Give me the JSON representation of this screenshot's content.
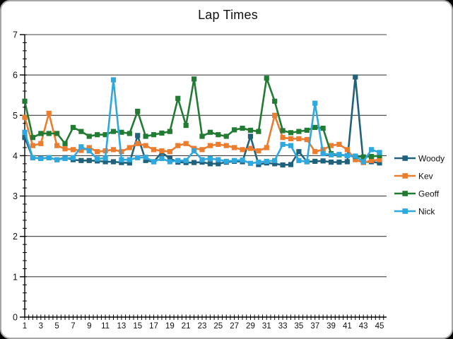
{
  "chart_data": {
    "type": "line",
    "title": "Lap Times",
    "xlabel": "",
    "ylabel": "",
    "xlim": [
      1,
      45
    ],
    "ylim": [
      0,
      7
    ],
    "grid": "horizontal-major-on",
    "legend_position": "right",
    "x": [
      1,
      2,
      3,
      4,
      5,
      6,
      7,
      8,
      9,
      10,
      11,
      12,
      13,
      14,
      15,
      16,
      17,
      18,
      19,
      20,
      21,
      22,
      23,
      24,
      25,
      26,
      27,
      28,
      29,
      30,
      31,
      32,
      33,
      34,
      35,
      36,
      37,
      38,
      39,
      40,
      41,
      42,
      43,
      44,
      45
    ],
    "x_tick_labels": [
      "1",
      "3",
      "5",
      "7",
      "9",
      "11",
      "13",
      "15",
      "17",
      "19",
      "21",
      "23",
      "25",
      "27",
      "29",
      "31",
      "33",
      "35",
      "37",
      "39",
      "41",
      "43",
      "45"
    ],
    "y_tick_labels": [
      "0",
      "1",
      "2",
      "3",
      "4",
      "5",
      "6",
      "7"
    ],
    "series": [
      {
        "name": "Woody",
        "color": "#20627C",
        "values": [
          4.45,
          3.95,
          3.93,
          3.95,
          3.9,
          3.95,
          3.9,
          3.88,
          3.88,
          3.87,
          3.85,
          3.85,
          3.83,
          3.82,
          4.5,
          3.88,
          3.85,
          4.08,
          3.93,
          3.84,
          3.83,
          3.83,
          3.84,
          3.8,
          3.8,
          3.84,
          3.86,
          3.85,
          4.48,
          3.78,
          3.82,
          3.8,
          3.77,
          3.78,
          4.1,
          3.85,
          3.86,
          3.87,
          3.84,
          3.84,
          3.85,
          5.95,
          3.84,
          3.85,
          3.82
        ]
      },
      {
        "name": "Kev",
        "color": "#EC7C2E",
        "values": [
          4.95,
          4.25,
          4.3,
          5.05,
          4.25,
          4.17,
          4.15,
          4.13,
          4.2,
          4.1,
          4.12,
          4.15,
          4.1,
          4.2,
          4.3,
          4.25,
          4.15,
          4.12,
          4.1,
          4.25,
          4.3,
          4.18,
          4.15,
          4.25,
          4.28,
          4.25,
          4.2,
          4.15,
          4.18,
          4.12,
          4.2,
          5.0,
          4.45,
          4.42,
          4.42,
          4.4,
          4.1,
          4.15,
          4.25,
          4.28,
          4.15,
          3.9,
          3.83,
          3.88,
          3.9
        ]
      },
      {
        "name": "Geoff",
        "color": "#217B32",
        "values": [
          5.35,
          4.45,
          4.55,
          4.55,
          4.55,
          4.3,
          4.7,
          4.6,
          4.48,
          4.52,
          4.52,
          4.6,
          4.58,
          4.55,
          5.1,
          4.48,
          4.52,
          4.56,
          4.6,
          5.42,
          4.75,
          5.9,
          4.48,
          4.58,
          4.52,
          4.48,
          4.64,
          4.68,
          4.63,
          4.6,
          5.92,
          5.35,
          4.62,
          4.57,
          4.6,
          4.63,
          4.7,
          4.68,
          4.05,
          4.02,
          4.0,
          3.98,
          3.97,
          3.98,
          4.0
        ]
      },
      {
        "name": "Nick",
        "color": "#2FA8DF",
        "values": [
          4.58,
          3.95,
          3.93,
          3.95,
          3.9,
          3.93,
          3.95,
          4.22,
          4.12,
          3.92,
          3.94,
          5.88,
          3.9,
          3.9,
          3.95,
          3.96,
          3.85,
          3.93,
          3.85,
          3.88,
          3.88,
          4.12,
          3.9,
          3.93,
          3.9,
          3.86,
          3.88,
          3.89,
          3.81,
          3.84,
          3.86,
          3.88,
          4.28,
          4.25,
          3.88,
          3.85,
          5.3,
          4.05,
          4.02,
          4.03,
          4.0,
          3.99,
          3.85,
          4.15,
          4.08
        ]
      }
    ]
  },
  "colors": {
    "gridline": "#404040",
    "axis": "#000000",
    "text": "#111111",
    "background": "#ffffff",
    "frame_border": "#a6a6a6"
  }
}
